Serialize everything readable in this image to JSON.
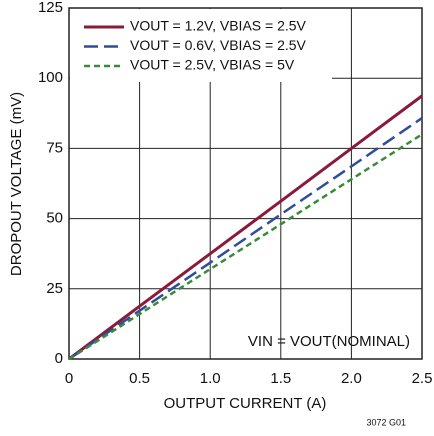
{
  "chart_data": {
    "type": "line",
    "xlabel": "OUTPUT CURRENT (A)",
    "ylabel": "DROPOUT VOLTAGE (mV)",
    "annotations": [
      "VIN = VOUT(NOMINAL)",
      "3072 G01"
    ],
    "x": [
      0,
      0.5,
      1.0,
      1.5,
      2.0,
      2.5
    ],
    "series": [
      {
        "name": "VOUT = 1.2V, VBIAS = 2.5V",
        "color": "#8b1a3a",
        "dash": "none",
        "values": [
          0,
          18.8,
          37.5,
          56.2,
          75,
          93.7
        ]
      },
      {
        "name": "VOUT = 0.6V, VBIAS = 2.5V",
        "color": "#2e4d9b",
        "dash": "14,6",
        "values": [
          0,
          17.2,
          34.3,
          51.5,
          68.6,
          85.8
        ]
      },
      {
        "name": "VOUT = 2.5V, VBIAS = 5V",
        "color": "#3a8a3a",
        "dash": "6,4",
        "values": [
          0,
          16,
          32,
          48,
          64,
          80
        ]
      }
    ],
    "xlim": [
      0,
      2.5
    ],
    "xticks": [
      0,
      0.5,
      {
        "value": 1.0,
        "label": "1.0"
      },
      1.5,
      {
        "value": 2.0,
        "label": "2.0"
      },
      2.5
    ],
    "ylim": [
      0,
      125
    ],
    "yticks": [
      0,
      25,
      50,
      75,
      100,
      125
    ],
    "grid": true,
    "legend": "upper left"
  }
}
